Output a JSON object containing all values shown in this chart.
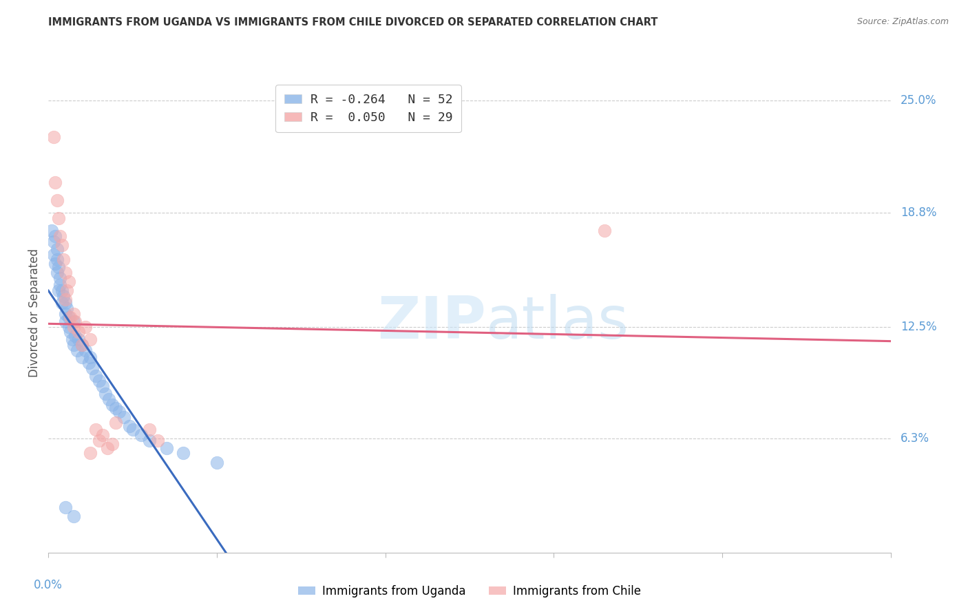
{
  "title": "IMMIGRANTS FROM UGANDA VS IMMIGRANTS FROM CHILE DIVORCED OR SEPARATED CORRELATION CHART",
  "source": "Source: ZipAtlas.com",
  "ylabel": "Divorced or Separated",
  "right_ytick_labels": [
    "25.0%",
    "18.8%",
    "12.5%",
    "6.3%"
  ],
  "right_ytick_values": [
    0.25,
    0.188,
    0.125,
    0.063
  ],
  "xmin": 0.0,
  "xmax": 0.5,
  "ymin": 0.0,
  "ymax": 0.265,
  "uganda_color": "#8ab4e8",
  "chile_color": "#f4a8a8",
  "uganda_line_color": "#3a6bbf",
  "chile_line_color": "#e06080",
  "uganda_line_solid_end": 0.2,
  "uganda_line_start_y": 0.133,
  "uganda_line_end_y": 0.073,
  "chile_line_start_y": 0.118,
  "chile_line_end_y": 0.135,
  "uganda_points_x": [
    0.002,
    0.003,
    0.003,
    0.004,
    0.004,
    0.005,
    0.005,
    0.005,
    0.006,
    0.006,
    0.007,
    0.007,
    0.008,
    0.008,
    0.009,
    0.01,
    0.01,
    0.01,
    0.011,
    0.012,
    0.012,
    0.013,
    0.014,
    0.015,
    0.015,
    0.016,
    0.017,
    0.018,
    0.02,
    0.02,
    0.022,
    0.024,
    0.025,
    0.026,
    0.028,
    0.03,
    0.032,
    0.034,
    0.036,
    0.038,
    0.04,
    0.042,
    0.045,
    0.048,
    0.05,
    0.055,
    0.06,
    0.07,
    0.08,
    0.1,
    0.01,
    0.015
  ],
  "uganda_points_y": [
    0.178,
    0.172,
    0.165,
    0.16,
    0.175,
    0.168,
    0.162,
    0.155,
    0.158,
    0.145,
    0.152,
    0.148,
    0.145,
    0.138,
    0.142,
    0.138,
    0.132,
    0.128,
    0.135,
    0.125,
    0.13,
    0.122,
    0.118,
    0.128,
    0.115,
    0.12,
    0.112,
    0.118,
    0.115,
    0.108,
    0.112,
    0.105,
    0.108,
    0.102,
    0.098,
    0.095,
    0.092,
    0.088,
    0.085,
    0.082,
    0.08,
    0.078,
    0.075,
    0.07,
    0.068,
    0.065,
    0.062,
    0.058,
    0.055,
    0.05,
    0.025,
    0.02
  ],
  "chile_points_x": [
    0.003,
    0.004,
    0.005,
    0.006,
    0.007,
    0.008,
    0.009,
    0.01,
    0.01,
    0.011,
    0.012,
    0.013,
    0.015,
    0.015,
    0.016,
    0.018,
    0.02,
    0.022,
    0.025,
    0.028,
    0.03,
    0.032,
    0.035,
    0.038,
    0.04,
    0.06,
    0.065,
    0.33,
    0.025
  ],
  "chile_points_y": [
    0.23,
    0.205,
    0.195,
    0.185,
    0.175,
    0.17,
    0.162,
    0.155,
    0.14,
    0.145,
    0.15,
    0.13,
    0.125,
    0.132,
    0.128,
    0.122,
    0.115,
    0.125,
    0.118,
    0.068,
    0.062,
    0.065,
    0.058,
    0.06,
    0.072,
    0.068,
    0.062,
    0.178,
    0.055
  ]
}
